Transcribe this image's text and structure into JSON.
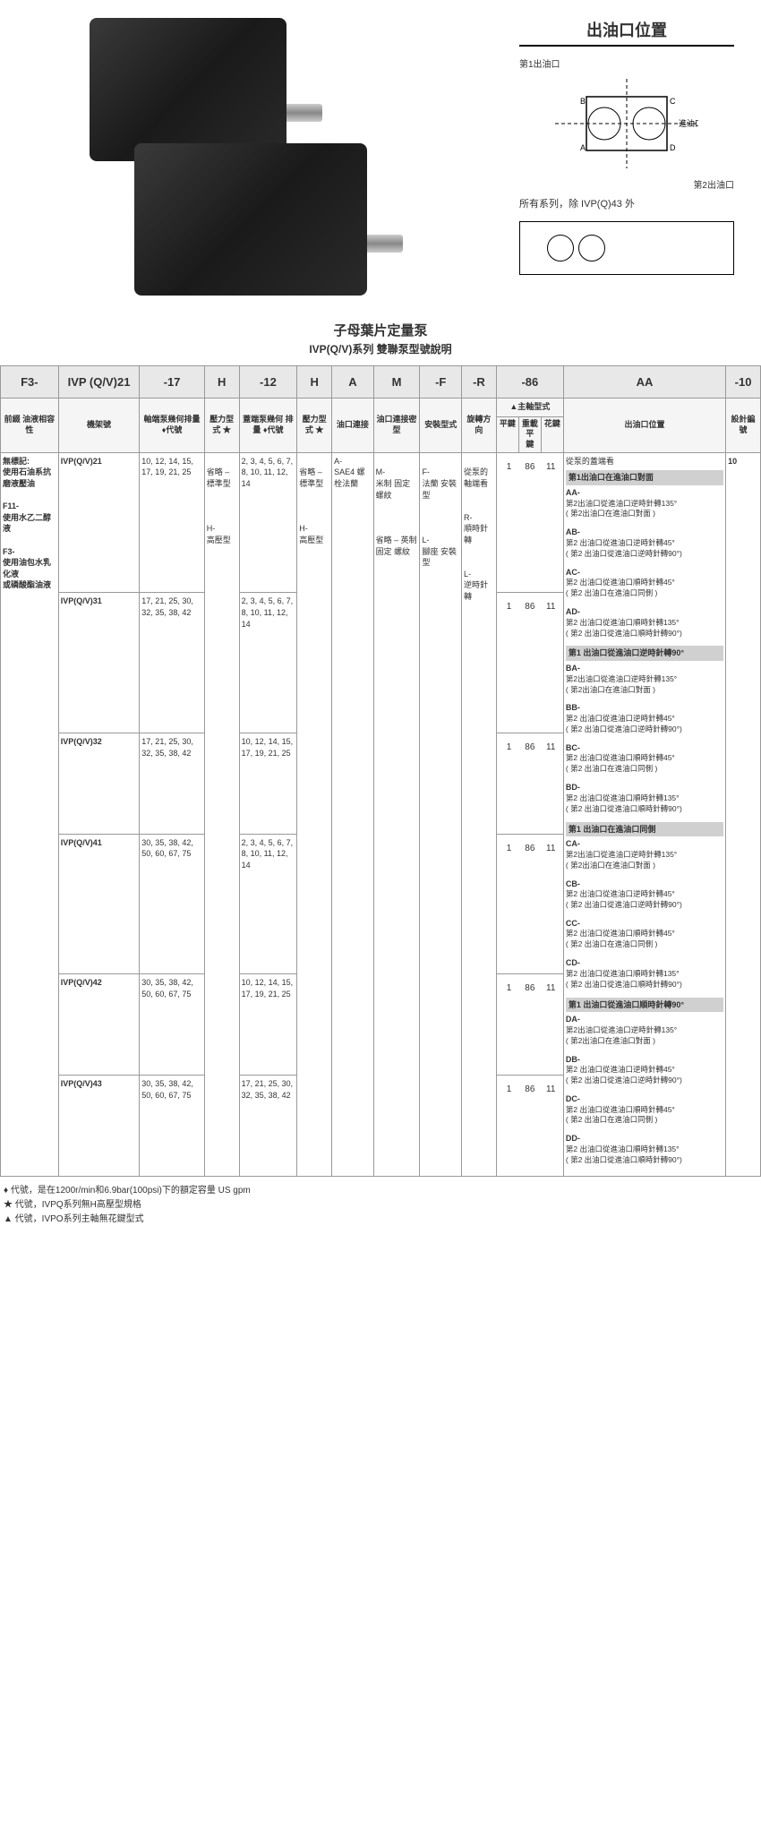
{
  "diagram": {
    "title": "出油口位置",
    "port1": "第1出油口",
    "port2": "第2出油口",
    "inlet": "進油口",
    "note": "所有系列，除 IVP(Q)43 外"
  },
  "titles": {
    "main": "子母葉片定量泵",
    "sub": "IVP(Q/V)系列 雙聯泵型號說明"
  },
  "header": {
    "c1": "F3-",
    "c2": "IVP (Q/V)21",
    "c3": "-17",
    "c4": "H",
    "c5": "-12",
    "c6": "H",
    "c7": "A",
    "c8": "M",
    "c9": "-F",
    "c10": "-R",
    "c11": "-86",
    "c12": "AA",
    "c13": "-10"
  },
  "labels": {
    "c1": "前綴\n油液相容性",
    "c2": "機架號",
    "c3": "軸端泵幾何排量\n♦代號",
    "c4": "壓力型式\n★",
    "c5": "蓋端泵幾何\n排量\n♦代號",
    "c6": "壓力型式\n★",
    "c7": "油口連接",
    "c8": "油口連接密\n型",
    "c9": "安裝型式",
    "c10": "旋轉方\n向",
    "c11": "▲主軸型式",
    "c11a": "平鍵",
    "c11b": "重載平\n鍵",
    "c11c": "花鍵",
    "c12": "出油口位置",
    "c13": "設計編\n號"
  },
  "compat": {
    "none": "無標記:\n使用石油系抗磨液壓油",
    "f11": "F11-\n使用水乙二醇液",
    "f3": "F3-\n使用油包水乳化液\n或磷酸酯油液"
  },
  "models": [
    {
      "name": "IVP(Q/V)21",
      "d1": "10, 12, 14, 15, 17, 19, 21, 25",
      "d2": "2, 3, 4, 5, 6, 7, 8, 10, 11, 12, 14"
    },
    {
      "name": "IVP(Q/V)31",
      "d1": "17, 21, 25, 30, 32, 35, 38, 42",
      "d2": "2, 3, 4, 5, 6, 7, 8, 10, 11, 12, 14"
    },
    {
      "name": "IVP(Q/V)32",
      "d1": "17, 21, 25, 30, 32, 35, 38, 42",
      "d2": "10, 12, 14, 15, 17, 19, 21, 25"
    },
    {
      "name": "IVP(Q/V)41",
      "d1": "30, 35, 38, 42, 50, 60, 67, 75",
      "d2": "2, 3, 4, 5, 6, 7, 8, 10, 11, 12, 14"
    },
    {
      "name": "IVP(Q/V)42",
      "d1": "30, 35, 38, 42, 50, 60, 67, 75",
      "d2": "10, 12, 14, 15, 17, 19, 21, 25"
    },
    {
      "name": "IVP(Q/V)43",
      "d1": "30, 35, 38, 42, 50, 60, 67, 75",
      "d2": "17, 21, 25, 30, 32, 35, 38, 42"
    }
  ],
  "pressure": {
    "std": "省略 –\n標準型",
    "high": "H-\n高壓型"
  },
  "port": {
    "a": "A-\nSAE4 螺栓法蘭"
  },
  "conn": {
    "m": "M-\n米制 固定螺紋",
    "omit": "省略 – 英制固定 螺紋"
  },
  "mount": {
    "f": "F-\n法蘭 安裝型",
    "l": "L-\n腳座 安裝型"
  },
  "rot": {
    "omit": "從泵的\n軸端看",
    "r": "R-\n順時針\n轉",
    "l": "L-\n逆時針\n轉"
  },
  "shaft": {
    "k": "1",
    "hk": "86",
    "sp": "11"
  },
  "outlet": {
    "top": "從泵的蓋端看",
    "h1": "第1出油口在進油口對面",
    "h2": "第1 出油口從進油口逆時針轉90°",
    "h3": "第1 出油口在進油口同側",
    "h4": "第1 出油口從進油口順時針轉90°",
    "groups": [
      {
        "code": "AA-",
        "desc": "第2出油口從進油口逆時針轉135°\n( 第2出油口在進油口對面 )"
      },
      {
        "code": "AB-",
        "desc": "第2 出油口從進油口逆時針轉45°\n( 第2 出油口從進油口逆時針轉90°)"
      },
      {
        "code": "AC-",
        "desc": "第2 出油口從進油口順時針轉45°\n( 第2 出油口在進油口同側 )"
      },
      {
        "code": "AD-",
        "desc": "第2 出油口從進油口順時針轉135°\n( 第2 出油口從進油口順時針轉90°)"
      },
      {
        "code": "BA-",
        "desc": "第2出油口從進油口逆時針轉135°\n( 第2出油口在進油口對面 )"
      },
      {
        "code": "BB-",
        "desc": "第2 出油口從進油口逆時針轉45°\n( 第2 出油口從進油口逆時針轉90°)"
      },
      {
        "code": "BC-",
        "desc": "第2 出油口從進油口順時針轉45°\n( 第2 出油口在進油口同側 )"
      },
      {
        "code": "BD-",
        "desc": "第2 出油口從進油口順時針轉135°\n( 第2 出油口從進油口順時針轉90°)"
      },
      {
        "code": "CA-",
        "desc": "第2出油口從進油口逆時針轉135°\n( 第2出油口在進油口對面 )"
      },
      {
        "code": "CB-",
        "desc": "第2 出油口從進油口逆時針轉45°\n( 第2 出油口從進油口逆時針轉90°)"
      },
      {
        "code": "CC-",
        "desc": "第2 出油口從進油口順時針轉45°\n( 第2 出油口在進油口同側 )"
      },
      {
        "code": "CD-",
        "desc": "第2 出油口從進油口順時針轉135°\n( 第2 出油口從進油口順時針轉90°)"
      },
      {
        "code": "DA-",
        "desc": "第2出油口從進油口逆時針轉135°\n( 第2出油口在進油口對面 )"
      },
      {
        "code": "DB-",
        "desc": "第2 出油口從進油口逆時針轉45°\n( 第2 出油口從進油口逆時針轉90°)"
      },
      {
        "code": "DC-",
        "desc": "第2 出油口從進油口順時針轉45°\n( 第2 出油口在進油口同側 )"
      },
      {
        "code": "DD-",
        "desc": "第2 出油口從進油口順時針轉135°\n( 第2 出油口從進油口順時針轉90°)"
      }
    ]
  },
  "design": "10",
  "footnotes": {
    "f1": "♦ 代號，是在1200r/min和6.9bar(100psi)下的額定容量 US gpm",
    "f2": "★ 代號，IVPQ系列無H高壓型規格",
    "f3": "▲ 代號，IVPO系列主軸無花鍵型式"
  }
}
